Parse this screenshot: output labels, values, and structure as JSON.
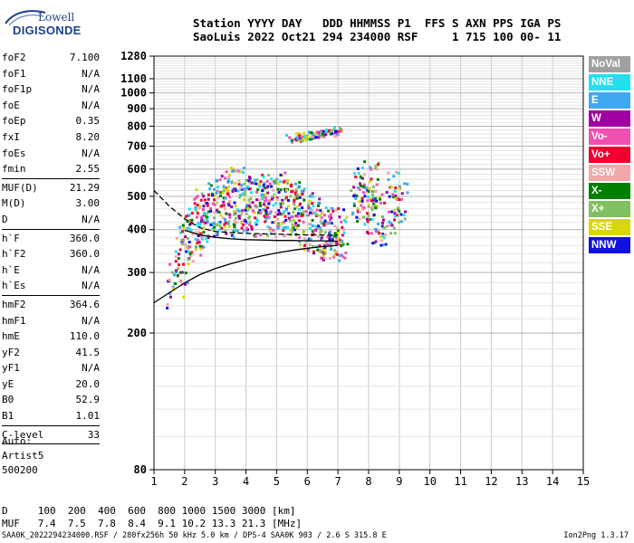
{
  "logo": {
    "line1": "Lowell",
    "line2": "DIGISONDE"
  },
  "header": {
    "line1": "Station YYYY DAY   DDD HHMMSS P1  FFS S AXN PPS IGA PS",
    "line2": "SaoLuis 2022 Oct21 294 234000 RSF     1 715 100 00- 11"
  },
  "params_group1": [
    {
      "label": "foF2",
      "value": "7.100"
    },
    {
      "label": "foF1",
      "value": "N/A"
    },
    {
      "label": "foF1p",
      "value": "N/A"
    },
    {
      "label": "foE",
      "value": "N/A"
    },
    {
      "label": "foEp",
      "value": "0.35"
    },
    {
      "label": "fxI",
      "value": "8.20"
    },
    {
      "label": "foEs",
      "value": "N/A"
    },
    {
      "label": "fmin",
      "value": "2.55"
    }
  ],
  "params_group2": [
    {
      "label": "MUF(D)",
      "value": "21.29"
    },
    {
      "label": "M(D)",
      "value": "3.00"
    },
    {
      "label": "D",
      "value": "N/A"
    }
  ],
  "params_group3": [
    {
      "label": "h`F",
      "value": "360.0"
    },
    {
      "label": "h`F2",
      "value": "360.0"
    },
    {
      "label": "h`E",
      "value": "N/A"
    },
    {
      "label": "h`Es",
      "value": "N/A"
    }
  ],
  "params_group4": [
    {
      "label": "hmF2",
      "value": "364.6"
    },
    {
      "label": "hmF1",
      "value": "N/A"
    },
    {
      "label": "hmE",
      "value": "110.0"
    },
    {
      "label": "yF2",
      "value": "41.5"
    },
    {
      "label": "yF1",
      "value": "N/A"
    },
    {
      "label": "yE",
      "value": "20.0"
    },
    {
      "label": "B0",
      "value": "52.9"
    },
    {
      "label": "B1",
      "value": "1.01"
    }
  ],
  "clevel": {
    "label": "C-level",
    "value": "33"
  },
  "auto": {
    "line1": "Auto:",
    "line2": "Artist5",
    "line3": "500200"
  },
  "legend": [
    {
      "label": "NoVal",
      "color": "#a0a0a0"
    },
    {
      "label": "NNE",
      "color": "#20e0f0"
    },
    {
      "label": "E",
      "color": "#40a8f0"
    },
    {
      "label": "W",
      "color": "#a000a0"
    },
    {
      "label": "Vo-",
      "color": "#f050b0"
    },
    {
      "label": "Vo+",
      "color": "#f00030"
    },
    {
      "label": "SSW",
      "color": "#f0a8a8"
    },
    {
      "label": "X-",
      "color": "#008000"
    },
    {
      "label": "X+",
      "color": "#80c060"
    },
    {
      "label": "SSE",
      "color": "#d8d800"
    },
    {
      "label": "NNW",
      "color": "#1010e0"
    }
  ],
  "muf_table": {
    "row1": "D     100  200  400  600  800 1000 1500 3000 [km]",
    "row2": "MUF   7.4  7.5  7.8  8.4  9.1 10.2 13.3 21.3 [MHz]"
  },
  "footer": "SAA0K_2022294234000.RSF / 280fx256h 50 kHz 5.0 km / DPS-4 SAA0K 903 / 2.6 S 315.8 E",
  "version": "Ion2Png 1.3.17",
  "chart_data": {
    "type": "scatter",
    "title": "",
    "xlabel": "",
    "ylabel": "",
    "xlim": [
      1,
      15
    ],
    "ylim": [
      80,
      1280
    ],
    "x_ticks": [
      1,
      2,
      3,
      4,
      5,
      6,
      7,
      8,
      9,
      10,
      11,
      12,
      13,
      14,
      15
    ],
    "y_ticks": [
      80,
      200,
      300,
      400,
      500,
      600,
      700,
      800,
      900,
      1000,
      1100,
      1280
    ],
    "y_scale": "log",
    "grid": true,
    "legend_placement": "right",
    "series": [
      {
        "name": "O-trace profile",
        "style": "line",
        "color": "#000000",
        "x": [
          1.0,
          1.5,
          2.0,
          2.5,
          3.0,
          3.5,
          4.0,
          4.5,
          5.0,
          5.5,
          6.0,
          6.5,
          7.0
        ],
        "y": [
          245,
          262,
          280,
          296,
          308,
          318,
          327,
          335,
          342,
          348,
          353,
          357,
          360
        ]
      },
      {
        "name": "Virtual height trace",
        "style": "line",
        "color": "#000000",
        "x": [
          1.0,
          1.5,
          2.0,
          2.5,
          3.0,
          3.5,
          4.0,
          4.5,
          5.0,
          5.5,
          6.0,
          6.5,
          7.0
        ],
        "y": [
          520,
          468,
          430,
          405,
          395,
          392,
          390,
          389,
          388,
          387,
          386,
          386,
          385
        ]
      },
      {
        "name": "Lower trace",
        "style": "line",
        "color": "#000000",
        "x": [
          2.0,
          2.5,
          3.0,
          3.5,
          4.0,
          4.5,
          5.0,
          5.5,
          6.0,
          6.5,
          7.0
        ],
        "y": [
          398,
          386,
          380,
          376,
          374,
          373,
          372,
          372,
          371,
          371,
          370
        ]
      },
      {
        "name": "F-region echoes",
        "style": "points",
        "x": [
          1.6,
          1.7,
          1.9,
          2.0,
          2.1,
          2.2,
          2.3,
          2.4,
          2.5,
          2.6,
          2.7,
          2.8,
          2.9,
          3.0,
          3.1,
          3.2,
          3.3,
          3.4,
          3.5,
          3.6,
          3.7,
          3.8,
          3.9,
          4.0,
          4.1,
          4.2,
          4.3,
          4.4,
          4.5,
          4.6,
          4.7,
          4.8,
          4.9,
          5.0,
          5.1,
          5.2,
          5.3,
          5.4,
          5.5,
          5.6,
          5.7,
          5.8,
          5.9,
          6.0,
          6.1,
          6.2,
          6.3,
          6.4,
          6.5,
          6.6,
          6.7,
          6.8,
          6.9,
          7.0,
          7.1,
          7.6,
          7.7,
          7.8,
          7.9,
          8.0,
          8.1,
          8.2,
          8.3,
          8.4,
          8.6,
          8.8,
          8.9,
          9.0
        ],
        "y": [
          280,
          300,
          320,
          350,
          380,
          390,
          400,
          420,
          440,
          410,
          430,
          450,
          470,
          480,
          460,
          500,
          470,
          520,
          450,
          480,
          500,
          470,
          510,
          480,
          460,
          500,
          470,
          490,
          460,
          480,
          450,
          470,
          490,
          460,
          500,
          470,
          480,
          450,
          470,
          460,
          440,
          450,
          430,
          420,
          430,
          410,
          420,
          400,
          410,
          400,
          390,
          400,
          390,
          400,
          390,
          520,
          480,
          500,
          540,
          470,
          450,
          560,
          420,
          440,
          420,
          500,
          460,
          520
        ]
      },
      {
        "name": "Multiple-hop echoes",
        "style": "points",
        "x": [
          5.5,
          5.6,
          5.7,
          5.8,
          5.9,
          6.0,
          6.1,
          6.2,
          6.3,
          6.4,
          6.5,
          6.6,
          6.7,
          6.8,
          6.9,
          7.0
        ],
        "y": [
          742,
          745,
          748,
          750,
          752,
          755,
          758,
          760,
          762,
          765,
          768,
          770,
          772,
          775,
          778,
          780
        ]
      }
    ]
  }
}
